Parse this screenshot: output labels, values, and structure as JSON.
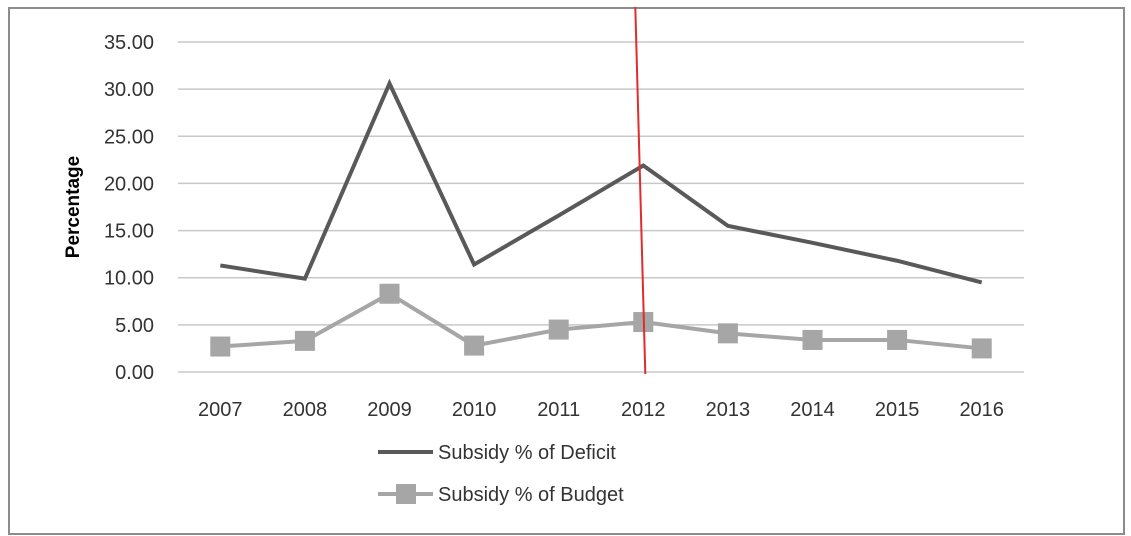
{
  "chart_data": {
    "type": "line",
    "title": "",
    "xlabel": "",
    "ylabel": "Percentage",
    "categories": [
      "2007",
      "2008",
      "2009",
      "2010",
      "2011",
      "2012",
      "2013",
      "2014",
      "2015",
      "2016"
    ],
    "ylim": [
      0,
      35
    ],
    "yticks": [
      "0.00",
      "5.00",
      "10.00",
      "15.00",
      "20.00",
      "25.00",
      "30.00",
      "35.00"
    ],
    "grid": true,
    "legend_position": "bottom",
    "series": [
      {
        "name": "Subsidy % of Deficit",
        "values": [
          11.3,
          9.9,
          30.6,
          11.4,
          16.6,
          21.9,
          15.5,
          13.7,
          11.8,
          9.5
        ],
        "color": "#595959",
        "marker": "none"
      },
      {
        "name": "Subsidy % of Budget",
        "values": [
          2.7,
          3.3,
          8.3,
          2.8,
          4.5,
          5.3,
          4.1,
          3.4,
          3.4,
          2.5
        ],
        "color": "#a6a6a6",
        "marker": "square"
      }
    ],
    "reference_line": {
      "category": "2012",
      "color": "#e32b2b"
    }
  }
}
